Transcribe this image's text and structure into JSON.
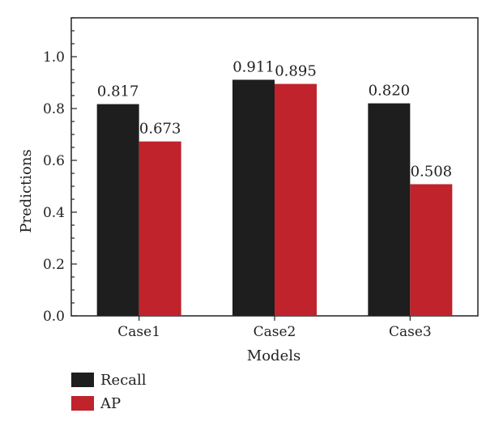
{
  "chart_data": {
    "type": "bar",
    "title": "",
    "xlabel": "Models",
    "ylabel": "Predictions",
    "categories": [
      "Case1",
      "Case2",
      "Case3"
    ],
    "series": [
      {
        "name": "Recall",
        "values": [
          0.817,
          0.911,
          0.82
        ],
        "labels": [
          "0.817",
          "0.911",
          "0.820"
        ],
        "color": "#1e1e1e"
      },
      {
        "name": "AP",
        "values": [
          0.673,
          0.895,
          0.508
        ],
        "labels": [
          "0.673",
          "0.895",
          "0.508"
        ],
        "color": "#c0232c"
      }
    ],
    "ylim": [
      0,
      1.15
    ],
    "yticks": [
      0.0,
      0.2,
      0.4,
      0.6,
      0.8,
      1.0
    ],
    "ytick_labels": [
      "0.0",
      "0.2",
      "0.4",
      "0.6",
      "0.8",
      "1.0"
    ],
    "grid": false,
    "legend_position": "bottom-left"
  }
}
